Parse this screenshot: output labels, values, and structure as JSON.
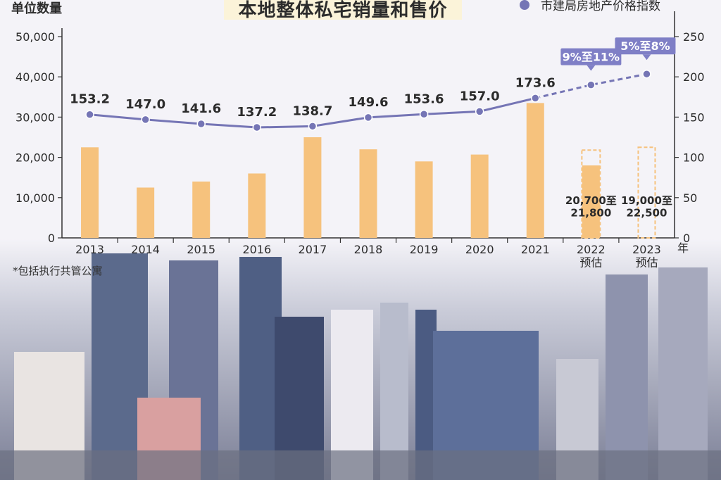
{
  "title": "本地整体私宅销量和售价",
  "footnote": "*包括执行共管公寓",
  "colors": {
    "bar": "#f6c27d",
    "line": "#7575b5",
    "badge": "#7f7fc6",
    "axis": "#333333"
  },
  "chart_data": {
    "type": "bar",
    "ylabel": "单位数量",
    "y2label": "市建局房地产价格指数",
    "xunit": "年",
    "categories": [
      "2013",
      "2014",
      "2015",
      "2016",
      "2017",
      "2018",
      "2019",
      "2020",
      "2021",
      "2022\n预估",
      "2023\n预估"
    ],
    "ylim": [
      0,
      50000
    ],
    "yticks": [
      "0",
      "10,000",
      "20,000",
      "30,000",
      "40,000",
      "50,000"
    ],
    "y2lim": [
      0,
      250
    ],
    "y2ticks": [
      "0",
      "50",
      "100",
      "150",
      "200",
      "250"
    ],
    "bars": [
      22500,
      12500,
      14000,
      16000,
      25000,
      22000,
      19000,
      20700,
      33500,
      18000,
      0
    ],
    "bar_ranges": [
      null,
      null,
      null,
      null,
      null,
      null,
      null,
      null,
      null,
      [
        20700,
        21800
      ],
      [
        19000,
        22500
      ]
    ],
    "bar_range_labels": [
      "",
      "",
      "",
      "",
      "",
      "",
      "",
      "",
      "",
      "20,700至\n21,800",
      "19,000至\n22,500"
    ],
    "line": [
      153.2,
      147.0,
      141.6,
      137.2,
      138.7,
      149.6,
      153.6,
      157.0,
      173.6,
      190,
      203.5
    ],
    "line_labels": [
      "153.2",
      "147.0",
      "141.6",
      "137.2",
      "138.7",
      "149.6",
      "153.6",
      "157.0",
      "173.6",
      "",
      ""
    ],
    "forecast_badges": [
      "",
      "",
      "",
      "",
      "",
      "",
      "",
      "",
      "",
      "9%至11%",
      "5%至8%"
    ],
    "forecast_from_index": 8
  }
}
